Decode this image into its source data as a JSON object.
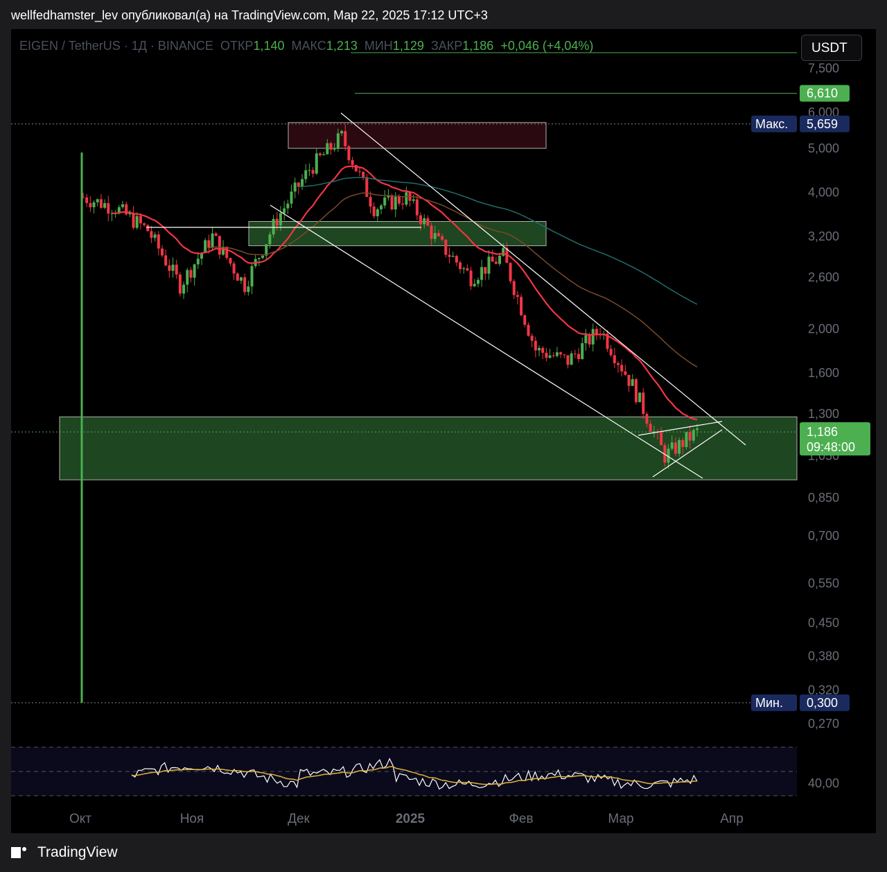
{
  "header": {
    "text": "wellfedhamster_lev опубликовал(а) на TradingView.com, Мар 22, 2025 17:12 UTC+3"
  },
  "symbol": {
    "name": "EIGEN / TetherUS · 1Д · BINANCE",
    "open_label": "ОТКР",
    "open": "1,140",
    "high_label": "МАКС",
    "high": "1,213",
    "low_label": "МИН",
    "low": "1,129",
    "close_label": "ЗАКР",
    "close": "1,186",
    "change": "+0,046 (+4,04%)"
  },
  "currency": "USDT",
  "footer": {
    "brand": "TradingView"
  },
  "colors": {
    "up": "#4caf50",
    "down": "#f23645",
    "ema_fast": "#f23645",
    "ema_mid": "#7a4a2a",
    "ema_slow": "#1f6d6a",
    "zone_green": "#1e4620",
    "zone_red": "#2a0a10",
    "rsi": "#ffffff",
    "rsi_ma": "#e0b43c"
  },
  "chart_data": {
    "type": "candlestick",
    "title": "EIGEN / TetherUS · 1Д · BINANCE",
    "y_scale": "log",
    "ylim": [
      0.25,
      8.0
    ],
    "y_ticks": [
      "7,500",
      "6,000",
      "5,000",
      "4,000",
      "3,200",
      "2,600",
      "2,000",
      "1,600",
      "1,300",
      "1,050",
      "0,850",
      "0,700",
      "0,550",
      "0,450",
      "0,380",
      "0,320",
      "0,270"
    ],
    "x_ticks": [
      "Окт",
      "Ноя",
      "Дек",
      "2025",
      "Фев",
      "Мар",
      "Апр"
    ],
    "price_labels": [
      {
        "label": "",
        "value": "6,610"
      },
      {
        "label": "Макс.",
        "value": "5,659"
      },
      {
        "label": "",
        "value": "1,186",
        "timer": "09:48:00"
      },
      {
        "label": "Мин.",
        "value": "0,300"
      }
    ],
    "approx_close_path": [
      {
        "x": "Окт 01",
        "y": 3.9
      },
      {
        "x": "Окт 10",
        "y": 3.7
      },
      {
        "x": "Окт 20",
        "y": 3.3
      },
      {
        "x": "Ноя 01",
        "y": 2.5
      },
      {
        "x": "Ноя 10",
        "y": 3.2
      },
      {
        "x": "Ноя 20",
        "y": 2.5
      },
      {
        "x": "Дек 01",
        "y": 3.5
      },
      {
        "x": "Дек 10",
        "y": 4.5
      },
      {
        "x": "Дек 17",
        "y": 5.3
      },
      {
        "x": "Дек 25",
        "y": 3.7
      },
      {
        "x": "2025 Янв 05",
        "y": 3.9
      },
      {
        "x": "Янв 15",
        "y": 3.1
      },
      {
        "x": "Янв 25",
        "y": 2.6
      },
      {
        "x": "Фев 01",
        "y": 2.9
      },
      {
        "x": "Фев 05",
        "y": 1.8
      },
      {
        "x": "Фев 15",
        "y": 1.7
      },
      {
        "x": "Фев 25",
        "y": 2.0
      },
      {
        "x": "Мар 05",
        "y": 1.5
      },
      {
        "x": "Мар 10",
        "y": 1.05
      },
      {
        "x": "Мар 22",
        "y": 1.186
      }
    ],
    "zones": [
      {
        "name": "resistance",
        "low": 5.0,
        "high": 5.7
      },
      {
        "name": "mid",
        "low": 3.05,
        "high": 3.45
      },
      {
        "name": "support",
        "low": 0.93,
        "high": 1.28
      }
    ],
    "rsi": {
      "tick": "40,00"
    }
  }
}
